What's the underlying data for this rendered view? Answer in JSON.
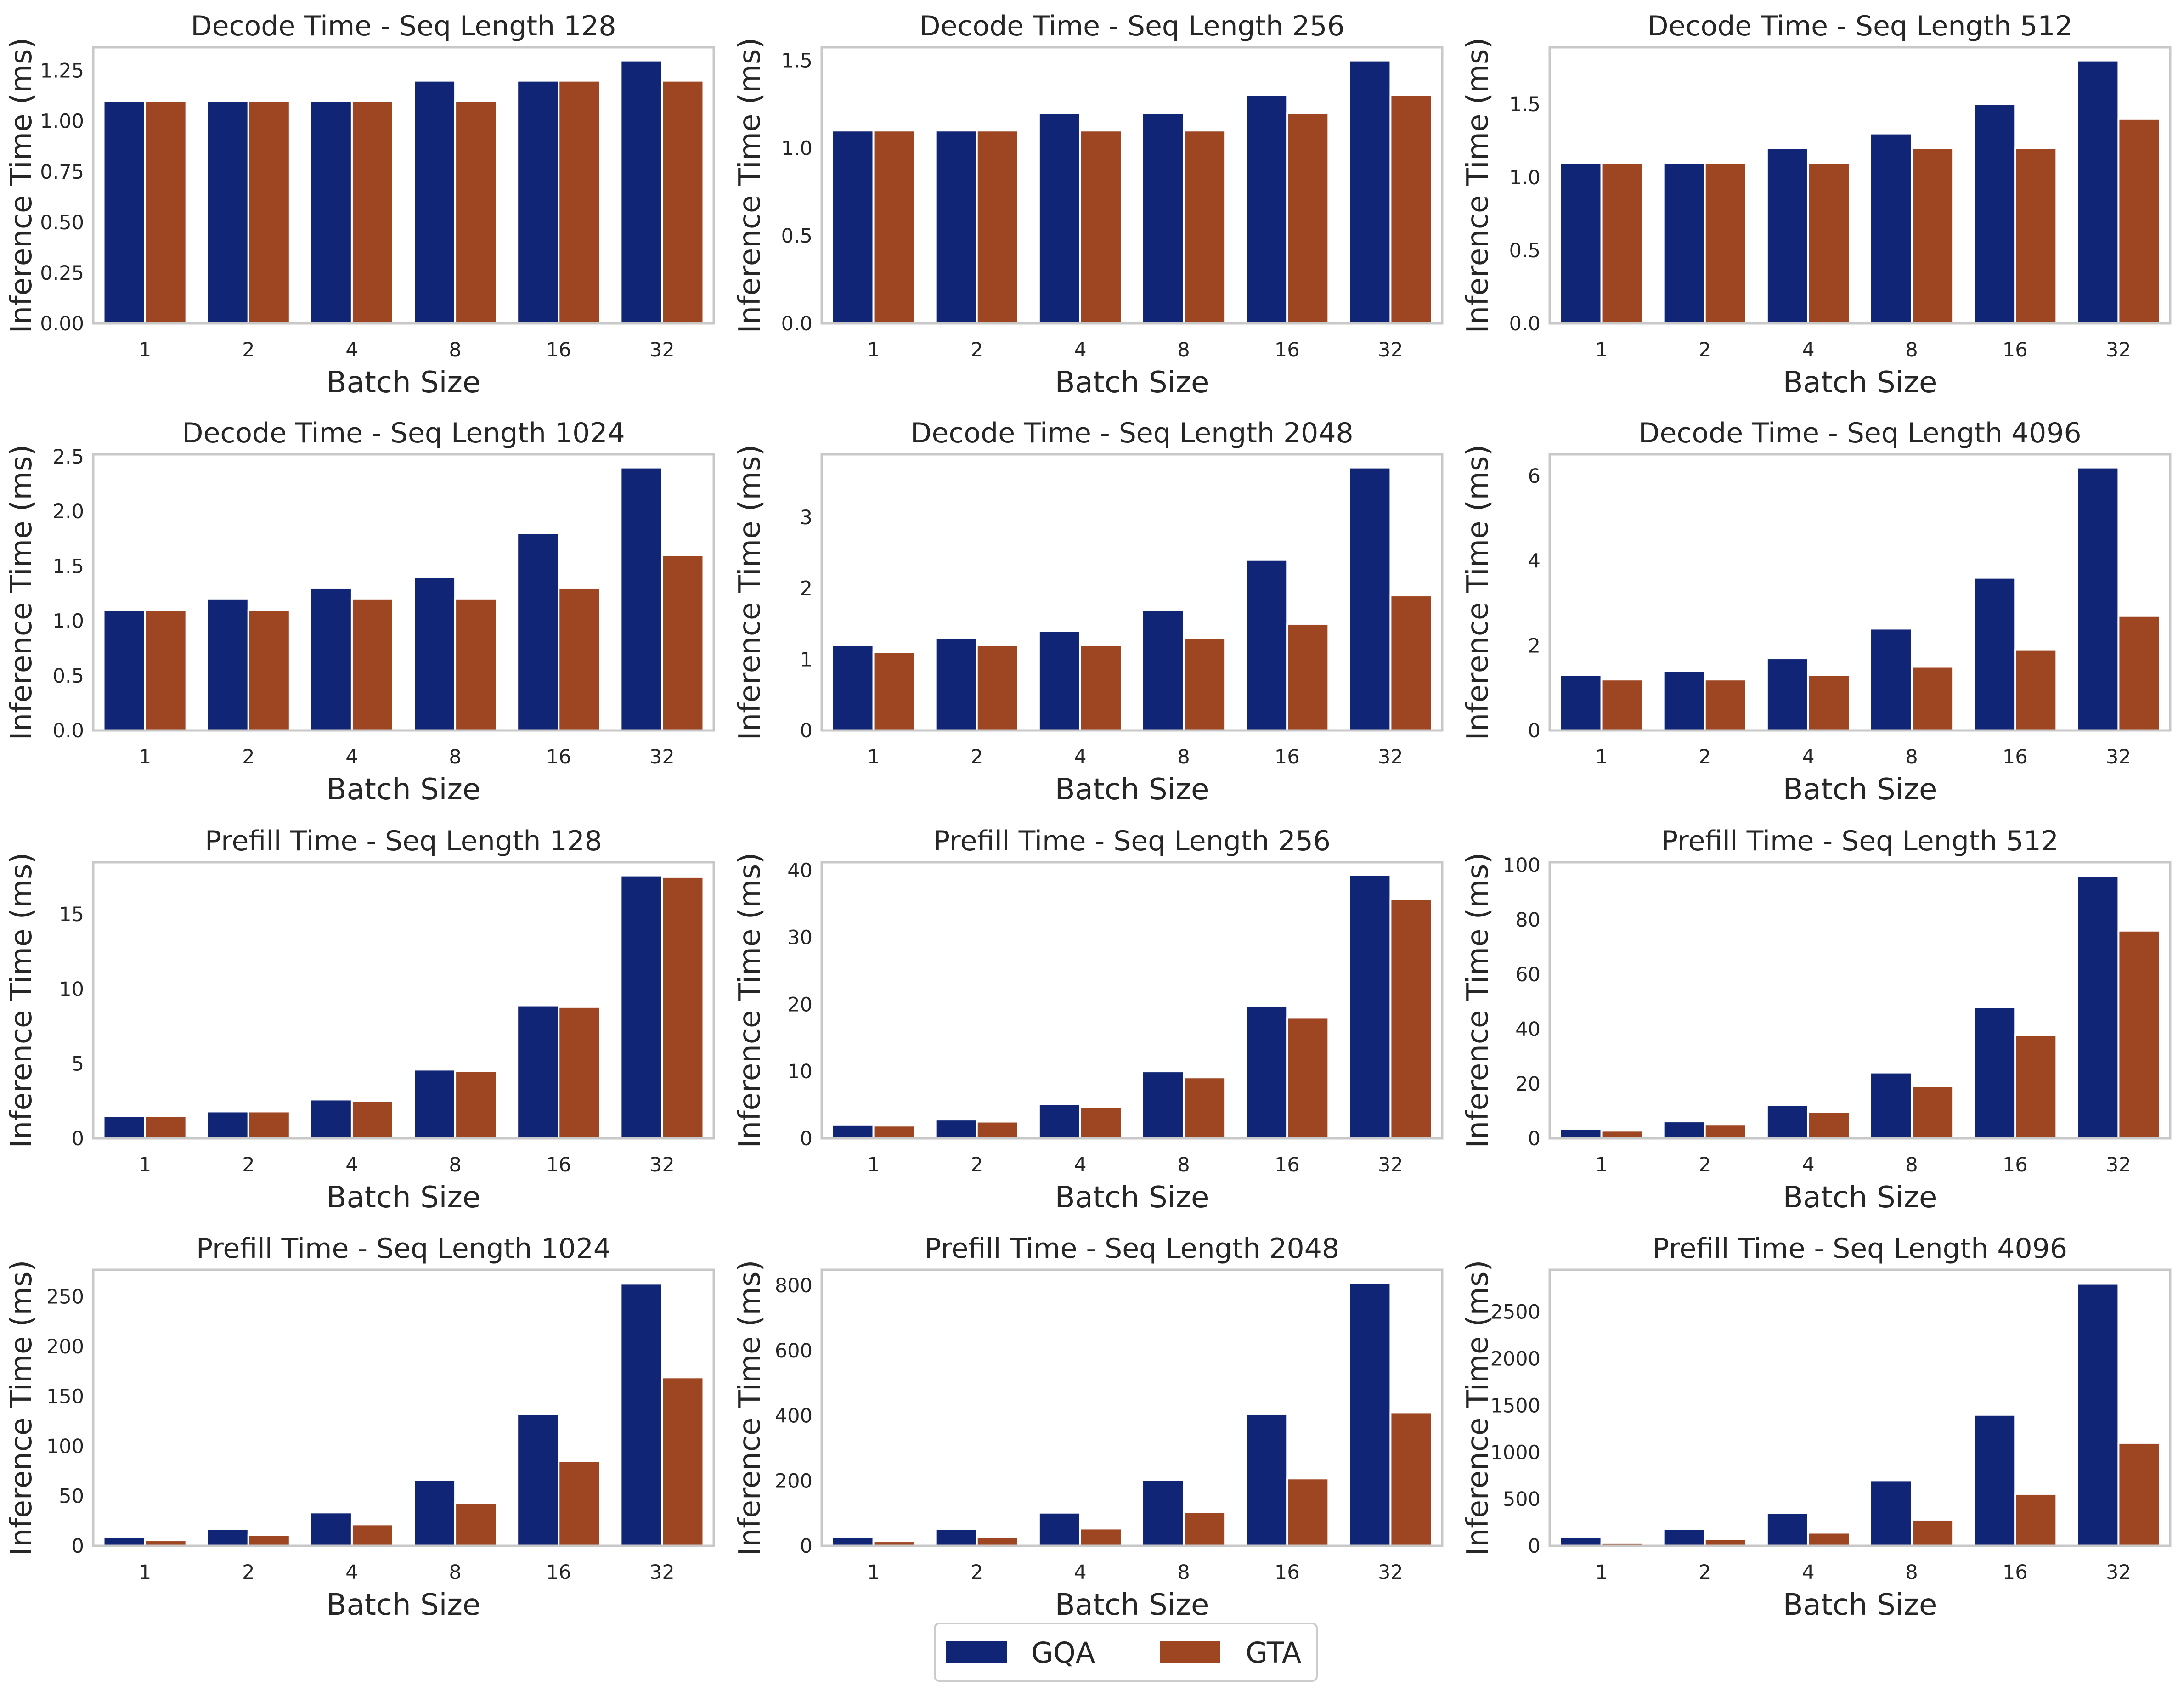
{
  "colors": {
    "GQA": "#102575",
    "GTA": "#9e4522"
  },
  "legend": {
    "items": [
      "GQA",
      "GTA"
    ],
    "placement": "bottom-center"
  },
  "chart_data": [
    {
      "type": "bar",
      "title": "Decode Time - Seq Length 128",
      "xlabel": "Batch Size",
      "ylabel": "Inference Time (ms)",
      "categories": [
        "1",
        "2",
        "4",
        "8",
        "16",
        "32"
      ],
      "ylim": [
        0,
        1.365
      ],
      "yticks": [
        0,
        0.25,
        0.5,
        0.75,
        1.0,
        1.25
      ],
      "ytick_labels": [
        "0.00",
        "0.25",
        "0.50",
        "0.75",
        "1.00",
        "1.25"
      ],
      "series": [
        {
          "name": "GQA",
          "values": [
            1.1,
            1.1,
            1.1,
            1.2,
            1.2,
            1.3
          ]
        },
        {
          "name": "GTA",
          "values": [
            1.1,
            1.1,
            1.1,
            1.1,
            1.2,
            1.2
          ]
        }
      ]
    },
    {
      "type": "bar",
      "title": "Decode Time - Seq Length 256",
      "xlabel": "Batch Size",
      "ylabel": "Inference Time (ms)",
      "categories": [
        "1",
        "2",
        "4",
        "8",
        "16",
        "32"
      ],
      "ylim": [
        0,
        1.575
      ],
      "yticks": [
        0,
        0.5,
        1.0,
        1.5
      ],
      "ytick_labels": [
        "0.0",
        "0.5",
        "1.0",
        "1.5"
      ],
      "series": [
        {
          "name": "GQA",
          "values": [
            1.1,
            1.1,
            1.2,
            1.2,
            1.3,
            1.5
          ]
        },
        {
          "name": "GTA",
          "values": [
            1.1,
            1.1,
            1.1,
            1.1,
            1.2,
            1.3
          ]
        }
      ]
    },
    {
      "type": "bar",
      "title": "Decode Time - Seq Length 512",
      "xlabel": "Batch Size",
      "ylabel": "Inference Time (ms)",
      "categories": [
        "1",
        "2",
        "4",
        "8",
        "16",
        "32"
      ],
      "ylim": [
        0,
        1.89
      ],
      "yticks": [
        0,
        0.5,
        1.0,
        1.5
      ],
      "ytick_labels": [
        "0.0",
        "0.5",
        "1.0",
        "1.5"
      ],
      "series": [
        {
          "name": "GQA",
          "values": [
            1.1,
            1.1,
            1.2,
            1.3,
            1.5,
            1.8
          ]
        },
        {
          "name": "GTA",
          "values": [
            1.1,
            1.1,
            1.1,
            1.2,
            1.2,
            1.4
          ]
        }
      ]
    },
    {
      "type": "bar",
      "title": "Decode Time - Seq Length 1024",
      "xlabel": "Batch Size",
      "ylabel": "Inference Time (ms)",
      "categories": [
        "1",
        "2",
        "4",
        "8",
        "16",
        "32"
      ],
      "ylim": [
        0,
        2.52
      ],
      "yticks": [
        0,
        0.5,
        1.0,
        1.5,
        2.0,
        2.5
      ],
      "ytick_labels": [
        "0.0",
        "0.5",
        "1.0",
        "1.5",
        "2.0",
        "2.5"
      ],
      "series": [
        {
          "name": "GQA",
          "values": [
            1.1,
            1.2,
            1.3,
            1.4,
            1.8,
            2.4
          ]
        },
        {
          "name": "GTA",
          "values": [
            1.1,
            1.1,
            1.2,
            1.2,
            1.3,
            1.6
          ]
        }
      ]
    },
    {
      "type": "bar",
      "title": "Decode Time - Seq Length 2048",
      "xlabel": "Batch Size",
      "ylabel": "Inference Time (ms)",
      "categories": [
        "1",
        "2",
        "4",
        "8",
        "16",
        "32"
      ],
      "ylim": [
        0,
        3.885
      ],
      "yticks": [
        0,
        1,
        2,
        3
      ],
      "ytick_labels": [
        "0",
        "1",
        "2",
        "3"
      ],
      "series": [
        {
          "name": "GQA",
          "values": [
            1.2,
            1.3,
            1.4,
            1.7,
            2.4,
            3.7
          ]
        },
        {
          "name": "GTA",
          "values": [
            1.1,
            1.2,
            1.2,
            1.3,
            1.5,
            1.9
          ]
        }
      ]
    },
    {
      "type": "bar",
      "title": "Decode Time - Seq Length 4096",
      "xlabel": "Batch Size",
      "ylabel": "Inference Time (ms)",
      "categories": [
        "1",
        "2",
        "4",
        "8",
        "16",
        "32"
      ],
      "ylim": [
        0,
        6.51
      ],
      "yticks": [
        0,
        2,
        4,
        6
      ],
      "ytick_labels": [
        "0",
        "2",
        "4",
        "6"
      ],
      "series": [
        {
          "name": "GQA",
          "values": [
            1.3,
            1.4,
            1.7,
            2.4,
            3.6,
            6.2
          ]
        },
        {
          "name": "GTA",
          "values": [
            1.2,
            1.2,
            1.3,
            1.5,
            1.9,
            2.7
          ]
        }
      ]
    },
    {
      "type": "bar",
      "title": "Prefill Time - Seq Length 128",
      "xlabel": "Batch Size",
      "ylabel": "Inference Time (ms)",
      "categories": [
        "1",
        "2",
        "4",
        "8",
        "16",
        "32"
      ],
      "ylim": [
        0,
        18.48
      ],
      "yticks": [
        0,
        5,
        10,
        15
      ],
      "ytick_labels": [
        "0",
        "5",
        "10",
        "15"
      ],
      "series": [
        {
          "name": "GQA",
          "values": [
            1.5,
            1.8,
            2.6,
            4.6,
            8.9,
            17.6
          ]
        },
        {
          "name": "GTA",
          "values": [
            1.5,
            1.8,
            2.5,
            4.5,
            8.8,
            17.5
          ]
        }
      ]
    },
    {
      "type": "bar",
      "title": "Prefill Time - Seq Length 256",
      "xlabel": "Batch Size",
      "ylabel": "Inference Time (ms)",
      "categories": [
        "1",
        "2",
        "4",
        "8",
        "16",
        "32"
      ],
      "ylim": [
        0,
        41.2
      ],
      "yticks": [
        0,
        10,
        20,
        30,
        40
      ],
      "ytick_labels": [
        "0",
        "10",
        "20",
        "30",
        "40"
      ],
      "series": [
        {
          "name": "GQA",
          "values": [
            2.0,
            2.8,
            5.1,
            10.0,
            19.8,
            39.3
          ]
        },
        {
          "name": "GTA",
          "values": [
            1.9,
            2.5,
            4.7,
            9.1,
            18.0,
            35.7
          ]
        }
      ]
    },
    {
      "type": "bar",
      "title": "Prefill Time - Seq Length 512",
      "xlabel": "Batch Size",
      "ylabel": "Inference Time (ms)",
      "categories": [
        "1",
        "2",
        "4",
        "8",
        "16",
        "32"
      ],
      "ylim": [
        0,
        101
      ],
      "yticks": [
        0,
        20,
        40,
        60,
        80,
        100
      ],
      "ytick_labels": [
        "0",
        "20",
        "40",
        "60",
        "80",
        "100"
      ],
      "series": [
        {
          "name": "GQA",
          "values": [
            3.5,
            6.2,
            12.2,
            24.1,
            48.0,
            96.1
          ]
        },
        {
          "name": "GTA",
          "values": [
            2.8,
            5.0,
            9.6,
            19.0,
            37.8,
            76.0
          ]
        }
      ]
    },
    {
      "type": "bar",
      "title": "Prefill Time - Seq Length 1024",
      "xlabel": "Batch Size",
      "ylabel": "Inference Time (ms)",
      "categories": [
        "1",
        "2",
        "4",
        "8",
        "16",
        "32"
      ],
      "ylim": [
        0,
        277
      ],
      "yticks": [
        0,
        50,
        100,
        150,
        200,
        250
      ],
      "ytick_labels": [
        "0",
        "50",
        "100",
        "150",
        "200",
        "250"
      ],
      "series": [
        {
          "name": "GQA",
          "values": [
            8.5,
            17.0,
            33.5,
            66.0,
            132.0,
            263.0
          ]
        },
        {
          "name": "GTA",
          "values": [
            5.5,
            11.0,
            21.5,
            43.0,
            85.0,
            169.0
          ]
        }
      ]
    },
    {
      "type": "bar",
      "title": "Prefill Time - Seq Length 2048",
      "xlabel": "Batch Size",
      "ylabel": "Inference Time (ms)",
      "categories": [
        "1",
        "2",
        "4",
        "8",
        "16",
        "32"
      ],
      "ylim": [
        0,
        848
      ],
      "yticks": [
        0,
        200,
        400,
        600,
        800
      ],
      "ytick_labels": [
        "0",
        "200",
        "400",
        "600",
        "800"
      ],
      "series": [
        {
          "name": "GQA",
          "values": [
            26,
            51,
            102,
            203,
            405,
            808
          ]
        },
        {
          "name": "GTA",
          "values": [
            14,
            27,
            53,
            104,
            207,
            410
          ]
        }
      ]
    },
    {
      "type": "bar",
      "title": "Prefill Time - Seq Length 4096",
      "xlabel": "Batch Size",
      "ylabel": "Inference Time (ms)",
      "categories": [
        "1",
        "2",
        "4",
        "8",
        "16",
        "32"
      ],
      "ylim": [
        0,
        2950
      ],
      "yticks": [
        0,
        500,
        1000,
        1500,
        2000,
        2500
      ],
      "ytick_labels": [
        "0",
        "500",
        "1000",
        "1500",
        "2000",
        "2500"
      ],
      "series": [
        {
          "name": "GQA",
          "values": [
            90,
            178,
            350,
            700,
            1400,
            2800
          ]
        },
        {
          "name": "GTA",
          "values": [
            35,
            70,
            140,
            280,
            555,
            1100
          ]
        }
      ]
    }
  ]
}
